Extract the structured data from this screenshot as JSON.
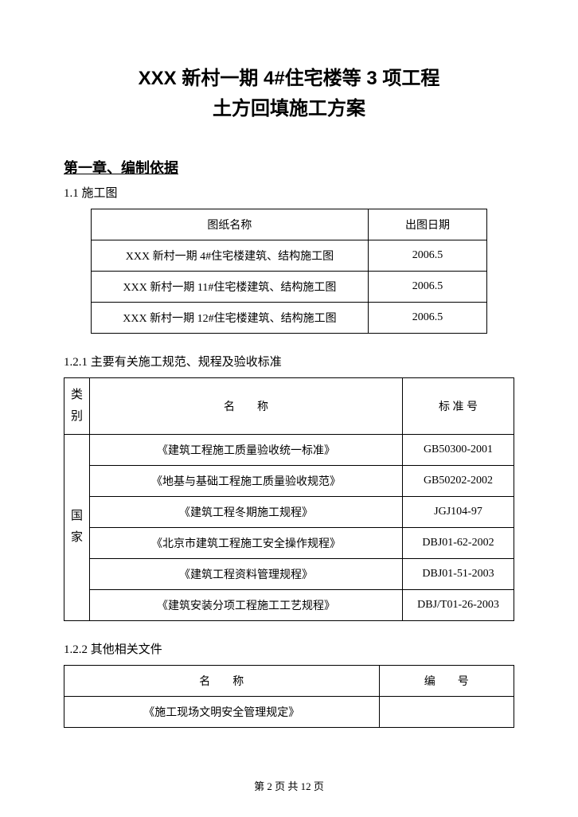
{
  "title": {
    "line1": "XXX 新村一期 4#住宅楼等 3 项工程",
    "line2": "土方回填施工方案"
  },
  "chapter_heading": "第一章、编制依据",
  "section_1_1_label": "1.1 施工图",
  "table1": {
    "headers": {
      "name": "图纸名称",
      "date": "出图日期"
    },
    "rows": [
      {
        "name": "XXX 新村一期 4#住宅楼建筑、结构施工图",
        "date": "2006.5"
      },
      {
        "name": "XXX 新村一期 11#住宅楼建筑、结构施工图",
        "date": "2006.5"
      },
      {
        "name": "XXX 新村一期 12#住宅楼建筑、结构施工图",
        "date": "2006.5"
      }
    ]
  },
  "section_1_2_1_label": "1.2.1 主要有关施工规范、规程及验收标准",
  "table2": {
    "headers": {
      "category": "类别",
      "name": "名　　称",
      "code": "标 准 号"
    },
    "category_label": "国家",
    "rows": [
      {
        "name": "《建筑工程施工质量验收统一标准》",
        "code": "GB50300-2001"
      },
      {
        "name": "《地基与基础工程施工质量验收规范》",
        "code": "GB50202-2002"
      },
      {
        "name": "《建筑工程冬期施工规程》",
        "code": "JGJ104-97"
      },
      {
        "name": "《北京市建筑工程施工安全操作规程》",
        "code": "DBJ01-62-2002"
      },
      {
        "name": "《建筑工程资料管理规程》",
        "code": "DBJ01-51-2003"
      },
      {
        "name": "《建筑安装分项工程施工工艺规程》",
        "code": "DBJ/T01-26-2003"
      }
    ]
  },
  "section_1_2_2_label": "1.2.2 其他相关文件",
  "table3": {
    "headers": {
      "name": "名　　称",
      "code": "编　　号"
    },
    "rows": [
      {
        "name": "《施工现场文明安全管理规定》",
        "code": ""
      }
    ]
  },
  "footer": "第 2 页 共 12 页"
}
